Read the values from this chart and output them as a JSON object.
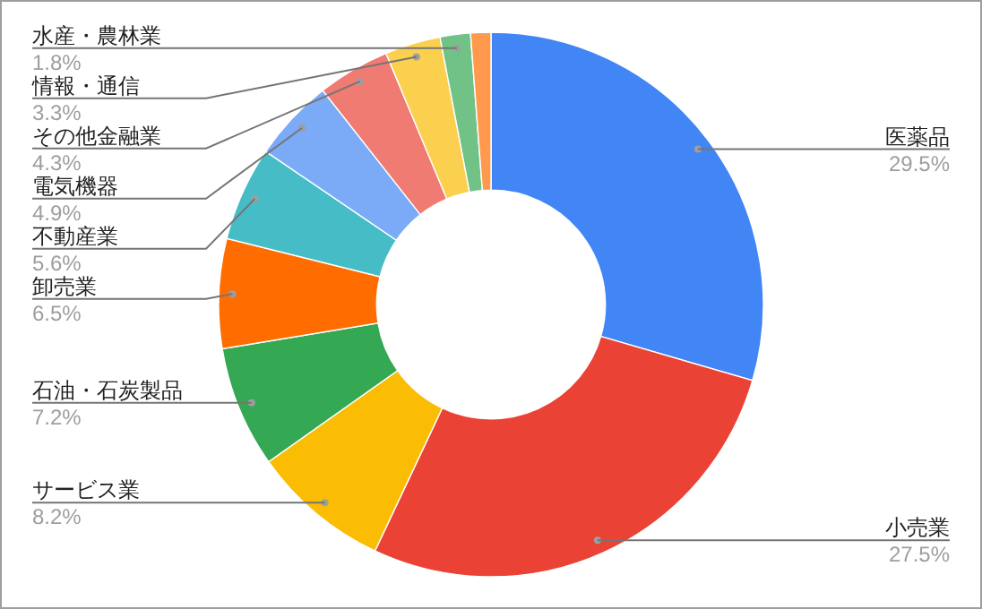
{
  "chart_data": {
    "type": "donut",
    "categories": [
      "医薬品",
      "小売業",
      "サービス業",
      "石油・石炭製品",
      "卸売業",
      "不動産業",
      "電気機器",
      "その他金融業",
      "情報・通信",
      "水産・農林業",
      null
    ],
    "values": [
      29.5,
      27.5,
      8.2,
      7.2,
      6.5,
      5.6,
      4.9,
      4.3,
      3.3,
      1.8,
      1.2
    ],
    "colors": [
      "#4285f4",
      "#ea4335",
      "#fbbc04",
      "#34a853",
      "#ff6d01",
      "#46bdc6",
      "#7baaf7",
      "#f07b72",
      "#fcd04f",
      "#71c287",
      "#ff994d"
    ],
    "value_labels": [
      "29.5%",
      "27.5%",
      "8.2%",
      "7.2%",
      "6.5%",
      "5.6%",
      "4.9%",
      "4.3%",
      "3.3%",
      "1.8%",
      null
    ]
  }
}
